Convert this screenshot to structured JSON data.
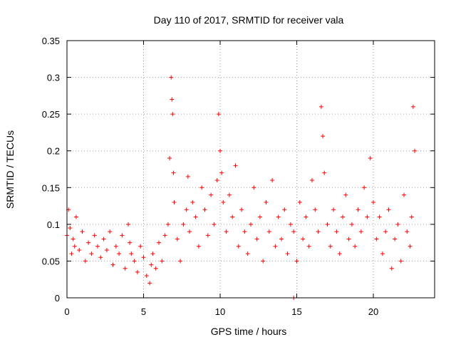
{
  "chart_data": {
    "type": "scatter",
    "title": "Day 110 of 2017, SRMTID for receiver vala",
    "xlabel": "GPS time / hours",
    "ylabel": "SRMTID / TECUs",
    "xlim": [
      0,
      24
    ],
    "ylim": [
      0,
      0.35
    ],
    "xticks": [
      0,
      5,
      10,
      15,
      20
    ],
    "xtick_labels": [
      "0",
      "5",
      "10",
      "15",
      "20"
    ],
    "yticks": [
      0,
      0.05,
      0.1,
      0.15,
      0.2,
      0.25,
      0.3,
      0.35
    ],
    "ytick_labels": [
      "0",
      "0.05",
      "0.1",
      "0.15",
      "0.2",
      "0.25",
      "0.3",
      "0.35"
    ],
    "grid": true,
    "marker": "plus",
    "color": "#ff0000",
    "series": [
      {
        "name": "SRMTID",
        "x": [
          0.0,
          0.1,
          0.2,
          0.3,
          0.4,
          0.5,
          0.6,
          0.8,
          1.0,
          1.2,
          1.4,
          1.6,
          1.8,
          2.0,
          2.2,
          2.4,
          2.6,
          2.8,
          3.0,
          3.2,
          3.4,
          3.6,
          3.8,
          4.0,
          4.1,
          4.2,
          4.4,
          4.6,
          4.8,
          5.0,
          5.2,
          5.4,
          5.5,
          5.6,
          5.8,
          6.0,
          6.2,
          6.4,
          6.6,
          6.7,
          6.8,
          6.85,
          6.9,
          6.95,
          7.0,
          7.2,
          7.4,
          7.6,
          7.8,
          7.9,
          8.0,
          8.2,
          8.4,
          8.6,
          8.8,
          9.0,
          9.2,
          9.4,
          9.6,
          9.8,
          9.9,
          10.0,
          10.1,
          10.2,
          10.4,
          10.6,
          10.8,
          11.0,
          11.2,
          11.4,
          11.6,
          11.8,
          12.0,
          12.2,
          12.4,
          12.6,
          12.8,
          13.0,
          13.2,
          13.4,
          13.6,
          13.8,
          14.0,
          14.2,
          14.4,
          14.6,
          14.8,
          15.0,
          15.2,
          15.4,
          15.6,
          15.8,
          16.0,
          16.2,
          16.4,
          16.6,
          16.7,
          16.8,
          17.0,
          17.2,
          17.4,
          17.6,
          17.8,
          18.0,
          18.2,
          18.4,
          18.6,
          18.8,
          19.0,
          19.2,
          19.4,
          19.6,
          19.8,
          20.0,
          20.2,
          20.4,
          20.6,
          20.8,
          21.0,
          21.2,
          21.4,
          21.6,
          21.8,
          22.0,
          22.2,
          22.4,
          22.5,
          22.6,
          22.7,
          14.8
        ],
        "y": [
          0.085,
          0.12,
          0.095,
          0.06,
          0.08,
          0.07,
          0.11,
          0.065,
          0.09,
          0.05,
          0.075,
          0.06,
          0.085,
          0.07,
          0.055,
          0.08,
          0.065,
          0.09,
          0.045,
          0.07,
          0.06,
          0.085,
          0.04,
          0.1,
          0.075,
          0.06,
          0.05,
          0.035,
          0.07,
          0.055,
          0.03,
          0.02,
          0.045,
          0.06,
          0.04,
          0.075,
          0.05,
          0.085,
          0.1,
          0.19,
          0.3,
          0.27,
          0.25,
          0.17,
          0.13,
          0.08,
          0.05,
          0.1,
          0.12,
          0.165,
          0.09,
          0.13,
          0.11,
          0.07,
          0.15,
          0.12,
          0.085,
          0.14,
          0.1,
          0.16,
          0.25,
          0.2,
          0.17,
          0.13,
          0.09,
          0.14,
          0.11,
          0.18,
          0.07,
          0.12,
          0.09,
          0.06,
          0.1,
          0.15,
          0.08,
          0.11,
          0.05,
          0.13,
          0.09,
          0.16,
          0.07,
          0.11,
          0.08,
          0.12,
          0.06,
          0.1,
          0.09,
          0.05,
          0.13,
          0.08,
          0.11,
          0.07,
          0.16,
          0.12,
          0.09,
          0.26,
          0.22,
          0.17,
          0.1,
          0.07,
          0.12,
          0.09,
          0.06,
          0.11,
          0.14,
          0.08,
          0.1,
          0.07,
          0.12,
          0.09,
          0.15,
          0.11,
          0.19,
          0.13,
          0.08,
          0.11,
          0.06,
          0.09,
          0.12,
          0.04,
          0.08,
          0.1,
          0.05,
          0.14,
          0.09,
          0.07,
          0.11,
          0.26,
          0.2,
          0.0
        ]
      }
    ]
  }
}
